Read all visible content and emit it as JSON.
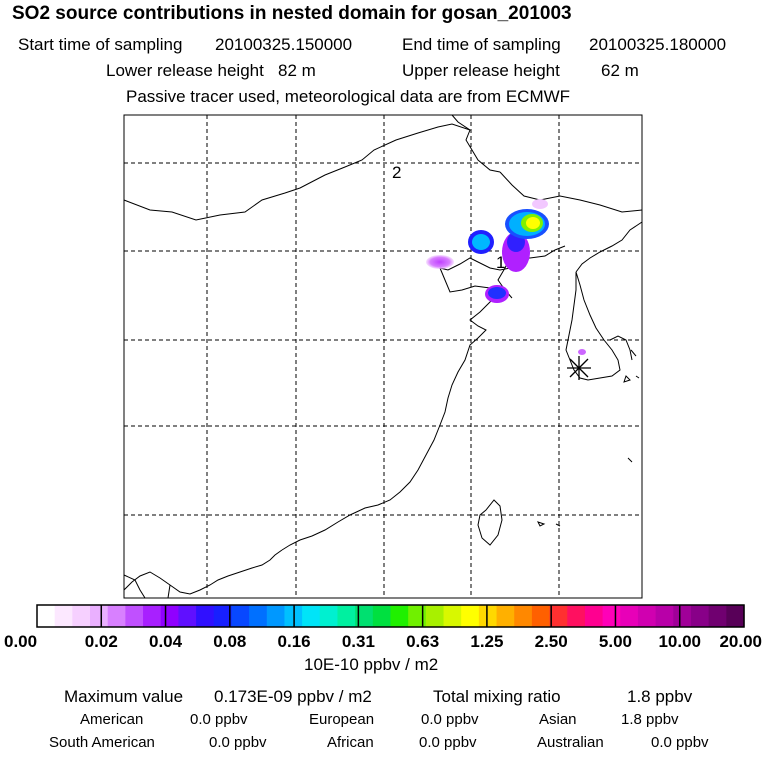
{
  "header": {
    "title": "SO2 source contributions in nested domain for gosan_201003",
    "start_label": "Start time of sampling",
    "start_value": "20100325.150000",
    "end_label": "End time of sampling",
    "end_value": "20100325.180000",
    "lower_label": "Lower release height",
    "lower_value": "82 m",
    "upper_label": "Upper release height",
    "upper_value": "62 m",
    "passive": "Passive tracer used, meteorological data are from ECMWF"
  },
  "map": {
    "markers": [
      "1",
      "2"
    ],
    "station_marker": "asterisk-icon",
    "colors": {
      "blob_purple": "#b000ff",
      "blob_blue": "#1030ff",
      "blob_cyan": "#00c8ff",
      "blob_yellow": "#ffff00"
    }
  },
  "colorbar": {
    "labels": [
      "0.00",
      "0.02",
      "0.04",
      "0.08",
      "0.16",
      "0.31",
      "0.63",
      "1.25",
      "2.50",
      "5.00",
      "10.00",
      "20.00"
    ],
    "units": "10E-10 ppbv / m2",
    "colors": [
      "#ffffff",
      "#fce8ff",
      "#f6d0ff",
      "#eab0ff",
      "#d880ff",
      "#c050ff",
      "#a820ff",
      "#9000ff",
      "#6010ff",
      "#3010ff",
      "#1820ff",
      "#0848ff",
      "#0070ff",
      "#0098ff",
      "#00c0ff",
      "#00e4f8",
      "#00f0d0",
      "#00f0a0",
      "#00e070",
      "#00e040",
      "#20f000",
      "#70f000",
      "#a8f000",
      "#d8f800",
      "#ffff00",
      "#ffd800",
      "#ffb000",
      "#ff8800",
      "#ff6000",
      "#ff3030",
      "#ff1060",
      "#ff0090",
      "#ff00b8",
      "#e800b8",
      "#d000b0",
      "#b800a8",
      "#a00098",
      "#880088",
      "#700070",
      "#580058"
    ]
  },
  "summary": {
    "max_label": "Maximum value",
    "max_value": "0.173E-09 ppbv / m2",
    "total_label": "Total mixing ratio",
    "total_value": "1.8 ppbv",
    "regions": [
      {
        "name": "American",
        "value": "0.0 ppbv"
      },
      {
        "name": "European",
        "value": "0.0 ppbv"
      },
      {
        "name": "Asian",
        "value": "1.8 ppbv"
      },
      {
        "name": "South American",
        "value": "0.0 ppbv"
      },
      {
        "name": "African",
        "value": "0.0 ppbv"
      },
      {
        "name": "Australian",
        "value": "0.0 ppbv"
      }
    ]
  }
}
